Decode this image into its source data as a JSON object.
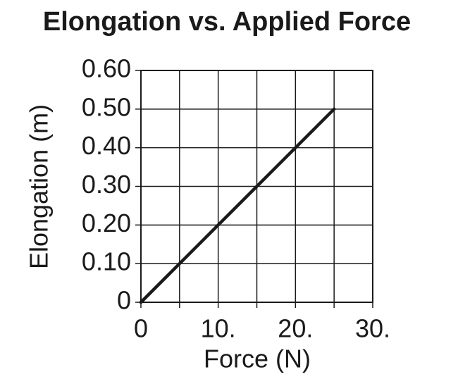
{
  "chart_data": {
    "type": "line",
    "title": "Elongation vs. Applied Force",
    "x_label": "Force (N)",
    "y_label": "Elongation (m)",
    "x": [
      0,
      25
    ],
    "series": [
      {
        "name": "Elongation",
        "color": "#1a1a1a",
        "values": [
          0,
          0.5
        ]
      }
    ],
    "xlim": [
      0,
      30
    ],
    "xticks": [
      0,
      {
        "value": 10,
        "label": "10."
      },
      {
        "value": 20,
        "label": "20."
      },
      {
        "value": 30,
        "label": "30."
      }
    ],
    "ylim": [
      0,
      0.6
    ],
    "yticks": [
      0,
      {
        "value": 0.1,
        "label": "0.10"
      },
      {
        "value": 0.2,
        "label": "0.20"
      },
      {
        "value": 0.3,
        "label": "0.30"
      },
      {
        "value": 0.4,
        "label": "0.40"
      },
      {
        "value": 0.5,
        "label": "0.50"
      },
      {
        "value": 0.6,
        "label": "0.60"
      }
    ],
    "grid": true,
    "legend": false
  }
}
